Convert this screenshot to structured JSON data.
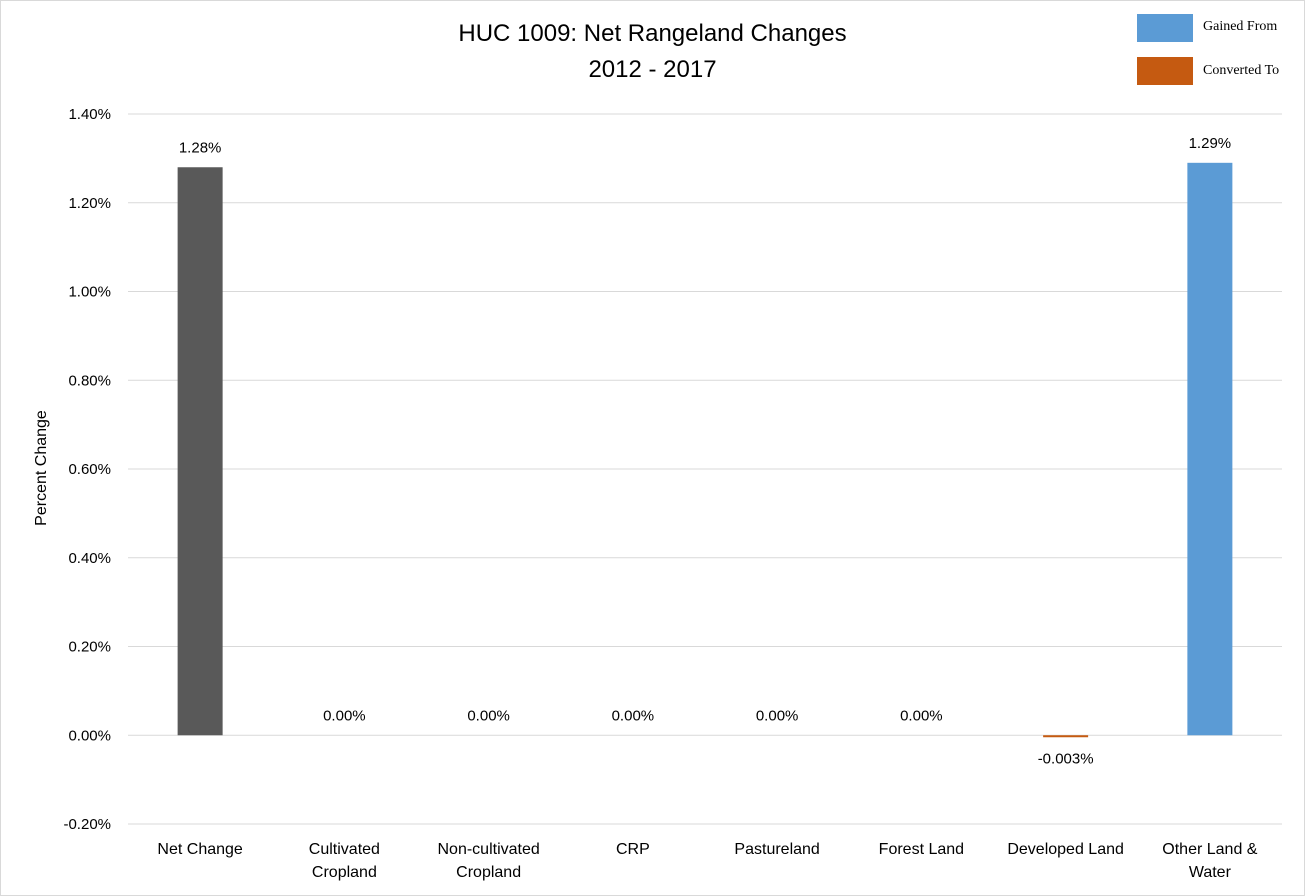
{
  "chart_data": {
    "type": "bar",
    "title": "HUC 1009: Net Rangeland Changes",
    "subtitle": "2012 - 2017",
    "ylabel": "Percent Change",
    "xlabel": "",
    "ylim": [
      -0.2,
      1.4
    ],
    "yticks": [
      "1.40%",
      "1.20%",
      "1.00%",
      "0.80%",
      "0.60%",
      "0.40%",
      "0.20%",
      "0.00%",
      "-0.20%"
    ],
    "ytick_values": [
      1.4,
      1.2,
      1.0,
      0.8,
      0.6,
      0.4,
      0.2,
      0.0,
      -0.2
    ],
    "categories": [
      [
        "Net Change"
      ],
      [
        "Cultivated",
        "Cropland"
      ],
      [
        "Non-cultivated",
        "Cropland"
      ],
      [
        "CRP"
      ],
      [
        "Pastureland"
      ],
      [
        "Forest Land"
      ],
      [
        "Developed Land"
      ],
      [
        "Other Land &",
        "Water"
      ]
    ],
    "values": [
      1.28,
      0.0,
      0.0,
      0.0,
      0.0,
      0.0,
      -0.003,
      1.29
    ],
    "data_labels": [
      "1.28%",
      "0.00%",
      "0.00%",
      "0.00%",
      "0.00%",
      "0.00%",
      "-0.003%",
      "1.29%"
    ],
    "bar_colors": [
      "#595959",
      "#5b9bd5",
      "#5b9bd5",
      "#5b9bd5",
      "#5b9bd5",
      "#5b9bd5",
      "#c55a11",
      "#5b9bd5"
    ],
    "grid": true,
    "legend_position": "top-right",
    "legend": [
      {
        "label": "Gained From",
        "color": "#5b9bd5"
      },
      {
        "label": "Converted To",
        "color": "#c55a11"
      }
    ]
  }
}
